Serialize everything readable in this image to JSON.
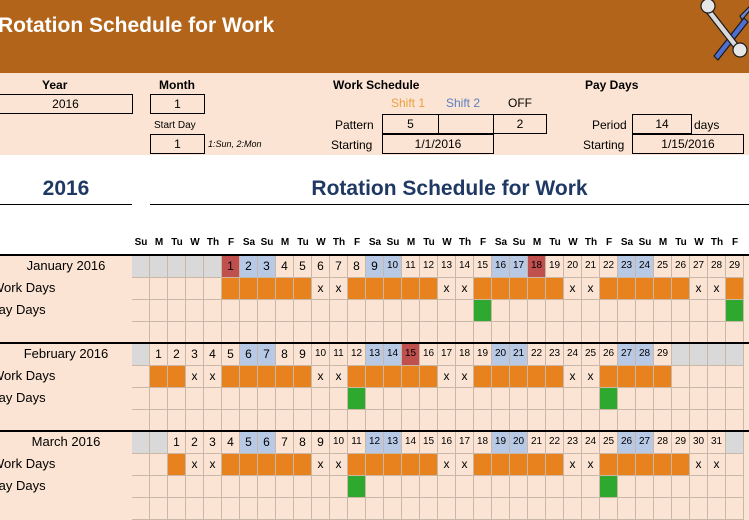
{
  "banner": {
    "title": "Rotation Schedule for Work",
    "icon": "tools-icon",
    "color": "#b2651a"
  },
  "settings": {
    "year_label": "Year",
    "year_value": "2016",
    "month_label": "Month",
    "month_value": "1",
    "start_day_label": "Start Day",
    "start_day_value": "1",
    "start_day_hint": "1:Sun, 2:Mon",
    "work_schedule_label": "Work Schedule",
    "shift1_label": "Shift 1",
    "shift2_label": "Shift 2",
    "off_label": "OFF",
    "pattern_label": "Pattern",
    "pattern_shift1": "5",
    "pattern_shift2": "",
    "pattern_off": "2",
    "starting_label": "Starting",
    "work_starting": "1/1/2016",
    "pay_days_label": "Pay Days",
    "period_label": "Period",
    "period_value": "14",
    "period_unit": "days",
    "pay_starting_label": "Starting",
    "pay_starting": "1/15/2016"
  },
  "section": {
    "year": "2016",
    "title": "Rotation Schedule for Work"
  },
  "weekday_headers": [
    "Su",
    "M",
    "Tu",
    "W",
    "Th",
    "F",
    "Sa",
    "Su",
    "M",
    "Tu",
    "W",
    "Th",
    "F",
    "Sa",
    "Su",
    "M",
    "Tu",
    "W",
    "Th",
    "F",
    "Sa",
    "Su",
    "M",
    "Tu",
    "W",
    "Th",
    "F",
    "Sa",
    "Su",
    "M",
    "Tu",
    "W",
    "Th",
    "F"
  ],
  "row_labels": {
    "work": "Work Days",
    "pay": "Pay Days"
  },
  "months": [
    {
      "name": "January 2016",
      "offset": 5,
      "days": 31,
      "off_days": [
        6,
        7,
        13,
        14,
        20,
        21,
        27,
        28
      ],
      "pay_days": [
        15,
        29
      ],
      "holidays": [
        1,
        18
      ]
    },
    {
      "name": "February 2016",
      "offset": 1,
      "days": 29,
      "off_days": [
        3,
        4,
        10,
        11,
        17,
        18,
        24,
        25
      ],
      "pay_days": [
        12,
        26
      ],
      "holidays": [
        15
      ]
    },
    {
      "name": "March 2016",
      "offset": 2,
      "days": 31,
      "off_days": [
        2,
        3,
        9,
        10,
        16,
        17,
        23,
        24,
        30,
        31
      ],
      "pay_days": [
        11,
        25
      ],
      "holidays": []
    }
  ],
  "colors": {
    "shift1": "#e8821e",
    "shift2": "#5b7fbf",
    "pay": "#2ea82e",
    "holiday": "#c0504d",
    "weekend": "#b8c9e6",
    "empty": "#d9d9d9",
    "row_bg": "#fbe4d3",
    "shift1_text": "#e8a040",
    "shift2_text": "#5b7fbf"
  },
  "off_mark": "x"
}
